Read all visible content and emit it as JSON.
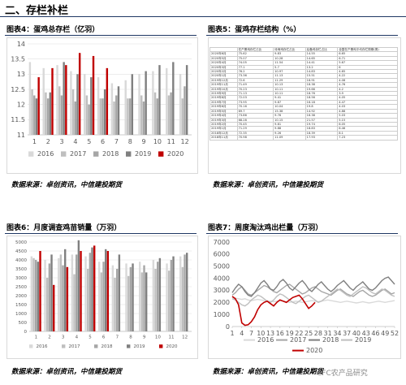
{
  "heading": "二、存栏补栏",
  "watermark": "CFC农产品研究",
  "chart_data": [
    {
      "type": "bar",
      "title": "图表4：蛋鸡总存栏（亿羽）",
      "source": "数据来源：卓创资讯，中信建投期货",
      "categories": [
        "1",
        "2",
        "3",
        "4",
        "5",
        "6",
        "7",
        "8",
        "9",
        "10",
        "11",
        "12"
      ],
      "ylim": [
        11,
        14
      ],
      "yticks": [
        11,
        11.5,
        12,
        12.5,
        13,
        13.5,
        14
      ],
      "grid": true,
      "legend": "bottom",
      "series": [
        {
          "name": "2016",
          "color": "#d9d9d9",
          "values": [
            13.4,
            13.2,
            13.3,
            13.1,
            13.0,
            12.9,
            12.7,
            12.8,
            13.0,
            13.1,
            13.2,
            13.0
          ]
        },
        {
          "name": "2017",
          "color": "#bfbfbf",
          "values": [
            12.5,
            12.4,
            12.6,
            12.5,
            12.3,
            12.2,
            12.1,
            12.2,
            12.3,
            12.4,
            12.3,
            12.2
          ]
        },
        {
          "name": "2018",
          "color": "#a6a6a6",
          "values": [
            12.3,
            12.2,
            12.3,
            12.1,
            12.0,
            12.2,
            12.3,
            12.2,
            12.1,
            12.2,
            12.4,
            12.6
          ]
        },
        {
          "name": "2019",
          "color": "#808080",
          "values": [
            12.2,
            12.4,
            13.4,
            13.0,
            12.9,
            12.5,
            12.6,
            13.0,
            13.1,
            13.3,
            13.4,
            13.3
          ]
        },
        {
          "name": "2020",
          "color": "#c00000",
          "values": [
            12.9,
            13.2,
            13.3,
            13.7,
            13.6,
            13.2,
            null,
            null,
            null,
            null,
            null,
            null
          ]
        }
      ]
    },
    {
      "type": "bar",
      "title": "图表6：月度调查鸡苗销量（万羽）",
      "source": "数据来源：卓创资讯，中信建投期货",
      "categories": [
        "1",
        "2",
        "3",
        "4",
        "5",
        "6",
        "7",
        "8",
        "9",
        "10",
        "11",
        "12"
      ],
      "ylim": [
        0,
        5000
      ],
      "yticks": [
        0,
        500,
        1000,
        1500,
        2000,
        2500,
        3000,
        3500,
        4000,
        4500,
        5000
      ],
      "grid": true,
      "legend": "bottom",
      "series": [
        {
          "name": "2016",
          "color": "#d9d9d9",
          "values": [
            4200,
            4000,
            4100,
            4300,
            4200,
            3900,
            3700,
            3800,
            3900,
            4000,
            3800,
            4200
          ]
        },
        {
          "name": "2017",
          "color": "#bfbfbf",
          "values": [
            4100,
            3000,
            4300,
            3200,
            3500,
            3300,
            3000,
            3100,
            3300,
            3500,
            3400,
            3600
          ]
        },
        {
          "name": "2018",
          "color": "#a6a6a6",
          "values": [
            4000,
            3800,
            3700,
            4300,
            4400,
            3900,
            3500,
            3600,
            3700,
            3900,
            4000,
            4300
          ]
        },
        {
          "name": "2019",
          "color": "#808080",
          "values": [
            3900,
            4300,
            4600,
            5100,
            4700,
            4600,
            4300,
            3800,
            3300,
            4100,
            4200,
            4400
          ]
        },
        {
          "name": "2020",
          "color": "#c00000",
          "values": [
            4500,
            2600,
            3600,
            4500,
            4800,
            4500,
            null,
            null,
            null,
            null,
            null,
            null
          ]
        }
      ]
    },
    {
      "type": "line",
      "title": "图表7：周度淘汰鸡出栏量（万羽）",
      "source": "数据来源：卓创资讯，中信建投期货",
      "x": [
        1,
        2,
        3,
        4,
        5,
        6,
        7,
        8,
        9,
        10,
        11,
        12,
        13,
        14,
        15,
        16,
        17,
        18,
        19,
        20,
        21,
        22,
        23,
        24,
        25,
        26,
        27,
        28,
        29,
        30,
        31,
        32,
        33,
        34,
        35,
        36,
        37,
        38,
        39,
        40,
        41,
        42,
        43,
        44,
        45,
        46,
        47,
        48,
        49,
        50,
        51,
        52
      ],
      "xlim": [
        1,
        52
      ],
      "xticks": [
        1,
        4,
        7,
        10,
        13,
        16,
        19,
        22,
        25,
        28,
        31,
        34,
        37,
        40,
        43,
        46,
        49,
        52
      ],
      "ylim": [
        0,
        7000
      ],
      "yticks": [
        0,
        1000,
        2000,
        3000,
        4000,
        5000,
        6000,
        7000
      ],
      "grid": false,
      "legend": "bottom",
      "series": [
        {
          "name": "2016",
          "color": "#d9d9d9",
          "values": [
            2400,
            2350,
            2300,
            2250,
            2300,
            2200,
            2150,
            2200,
            2250,
            2200,
            2150,
            2100,
            2100,
            2050,
            2100,
            2150,
            2100,
            2050,
            2000,
            2050,
            2100,
            2050,
            2000,
            2050,
            2100,
            2150,
            2100,
            2050,
            2100,
            2150,
            2200,
            2150,
            2100,
            2050,
            2000,
            2050,
            2100,
            2050,
            2000,
            1950,
            2000,
            2050,
            2000,
            1950,
            2000,
            2050,
            2100,
            2050,
            2000,
            2050,
            2100,
            2150
          ]
        },
        {
          "name": "2017",
          "color": "#a6a6a6",
          "values": [
            2600,
            2800,
            3100,
            3300,
            3000,
            2700,
            2600,
            2800,
            3000,
            3200,
            3400,
            3300,
            3100,
            2900,
            2800,
            3000,
            3200,
            3400,
            3500,
            3300,
            3100,
            2900,
            2700,
            2800,
            3000,
            3200,
            3300,
            3100,
            2900,
            2800,
            2700,
            2600,
            2800,
            3000,
            3100,
            2900,
            2700,
            2600,
            2500,
            2700,
            2900,
            3000,
            2800,
            2600,
            2500,
            2600,
            2800,
            3000,
            3100,
            2900,
            2700,
            2800
          ]
        },
        {
          "name": "2018",
          "color": "#7f7f7f",
          "values": [
            2800,
            3200,
            3500,
            3300,
            2900,
            2600,
            2500,
            2800,
            3200,
            3600,
            3800,
            3500,
            3100,
            3000,
            3300,
            3700,
            3900,
            3600,
            3200,
            3000,
            3300,
            3600,
            3800,
            3500,
            3100,
            2900,
            3200,
            3500,
            3700,
            3400,
            3100,
            2900,
            3100,
            3400,
            3600,
            3800,
            3500,
            3200,
            3000,
            3300,
            3500,
            3700,
            3400,
            3100,
            3000,
            3200,
            3500,
            3800,
            4000,
            4100,
            3800,
            3500
          ]
        },
        {
          "name": "2019",
          "color": "#bfbfbf",
          "values": [
            2300,
            2200,
            2000,
            1800,
            1700,
            1900,
            2200,
            2400,
            2600,
            2500,
            2300,
            2100,
            2000,
            2200,
            2500,
            2700,
            2600,
            2400,
            2200,
            2000,
            1900,
            2100,
            2300,
            2500,
            2600,
            2400,
            2200,
            2000,
            2100,
            2300,
            2500,
            2700,
            2900,
            3100,
            3000,
            2800,
            2600,
            2500,
            2700,
            2900,
            3100,
            3300,
            3200,
            3000,
            2800,
            2700,
            2900,
            3100,
            3000,
            2800,
            2600,
            2500
          ]
        },
        {
          "name": "2020",
          "color": "#c00000",
          "values": [
            2500,
            2300,
            1800,
            300,
            100,
            150,
            400,
            800,
            1400,
            1800,
            2000,
            2100,
            1900,
            1700,
            2000,
            2200,
            2100,
            2000,
            2200,
            2400,
            2500,
            2600,
            2300,
            1900,
            1500,
            1700,
            2000,
            null,
            null,
            null,
            null,
            null,
            null,
            null,
            null,
            null,
            null,
            null,
            null,
            null,
            null,
            null,
            null,
            null,
            null,
            null,
            null,
            null,
            null,
            null,
            null,
            null
          ]
        }
      ]
    }
  ],
  "table_panel": {
    "title": "图表5：蛋鸡存栏结构（%）",
    "source": "数据来源：卓创资讯，中信建投期货",
    "columns": [
      "",
      "在产蛋鸡存栏占比",
      "待淘鸡存栏占比",
      "后备鸡存栏占比",
      "全国在产蛋鸡平均存栏周期(周)"
    ],
    "rows": [
      [
        "2020年6月",
        "75.62",
        "9.83",
        "14.55",
        "6.65"
      ],
      [
        "2020年5月",
        "75.07",
        "10.28",
        "14.65",
        "6.71"
      ],
      [
        "2020年4月",
        "74.05",
        "11.54",
        "14.41",
        "5.67"
      ],
      [
        "2020年3月",
        "77.1",
        "5.7",
        "13.2",
        "6"
      ],
      [
        "2020年2月",
        "76.2",
        "10.97",
        "14.83",
        "4.65"
      ],
      [
        "2020年1月",
        "73.36",
        "11.13",
        "15.51",
        "4.22"
      ],
      [
        "2019年12月",
        "72.6",
        "11.29",
        "16.91",
        "4.08"
      ],
      [
        "2019年11月",
        "71.49",
        "10.13",
        "18.38",
        "4.76"
      ],
      [
        "2019年10月",
        "70.23",
        "10.11",
        "19.66",
        "4.2"
      ],
      [
        "2019年9月",
        "71.13",
        "10.11",
        "18.76",
        "3.9"
      ],
      [
        "2019年8月",
        "72.03",
        "9.41",
        "18.56",
        "4.05"
      ],
      [
        "2019年7月",
        "73.95",
        "9.87",
        "16.18",
        "4.47"
      ],
      [
        "2019年6月",
        "70.16",
        "10.04",
        "19.8",
        "4.03"
      ],
      [
        "2019年5月",
        "69.7",
        "15.38",
        "14.92",
        "4.88"
      ],
      [
        "2019年4月",
        "73.86",
        "9.76",
        "16.38",
        "5.03"
      ],
      [
        "2019年3月",
        "68.28",
        "10.15",
        "21.57",
        "5.15"
      ],
      [
        "2019年2月",
        "70.45",
        "9.81",
        "19.74",
        "6.05"
      ],
      [
        "2019年1月",
        "71.29",
        "9.88",
        "18.83",
        "6.46"
      ],
      [
        "2018年12月",
        "72.35",
        "9.26",
        "18.39",
        "8.1"
      ],
      [
        "2018年11月",
        "70.98",
        "11.09",
        "17.93",
        "7.23"
      ]
    ]
  }
}
